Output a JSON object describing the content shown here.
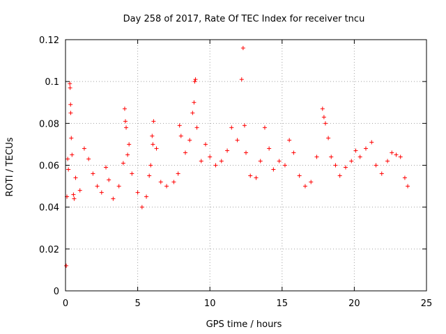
{
  "chart_data": {
    "type": "scatter",
    "title": "Day 258 of 2017, Rate Of TEC Index for receiver tncu",
    "xlabel": "GPS time / hours",
    "ylabel": "ROTI / TECUs",
    "xlim": [
      0,
      25
    ],
    "ylim": [
      0,
      0.12
    ],
    "x_ticks": [
      "0",
      "5",
      "10",
      "15",
      "20",
      "25"
    ],
    "y_ticks": [
      "0",
      "0.02",
      "0.04",
      "0.06",
      "0.08",
      "0.1",
      "0.12"
    ],
    "x_tick_values": [
      0,
      5,
      10,
      15,
      20,
      25
    ],
    "y_tick_values": [
      0,
      0.02,
      0.04,
      0.06,
      0.08,
      0.1,
      0.12
    ],
    "grid": true,
    "marker": "plus",
    "color": "#ff0000",
    "series": [
      {
        "points": [
          [
            0.05,
            0.012
          ],
          [
            0.1,
            0.045
          ],
          [
            0.15,
            0.063
          ],
          [
            0.2,
            0.058
          ],
          [
            0.3,
            0.099
          ],
          [
            0.32,
            0.097
          ],
          [
            0.35,
            0.089
          ],
          [
            0.36,
            0.085
          ],
          [
            0.4,
            0.073
          ],
          [
            0.45,
            0.065
          ],
          [
            0.55,
            0.046
          ],
          [
            0.6,
            0.044
          ],
          [
            0.7,
            0.054
          ],
          [
            1.0,
            0.048
          ],
          [
            1.3,
            0.068
          ],
          [
            1.6,
            0.063
          ],
          [
            1.9,
            0.056
          ],
          [
            2.2,
            0.05
          ],
          [
            2.5,
            0.047
          ],
          [
            2.8,
            0.059
          ],
          [
            3.0,
            0.053
          ],
          [
            3.3,
            0.044
          ],
          [
            3.7,
            0.05
          ],
          [
            4.0,
            0.061
          ],
          [
            4.1,
            0.087
          ],
          [
            4.15,
            0.081
          ],
          [
            4.2,
            0.078
          ],
          [
            4.3,
            0.065
          ],
          [
            4.4,
            0.07
          ],
          [
            4.6,
            0.056
          ],
          [
            5.0,
            0.047
          ],
          [
            5.3,
            0.04
          ],
          [
            5.6,
            0.045
          ],
          [
            5.8,
            0.055
          ],
          [
            5.9,
            0.06
          ],
          [
            6.0,
            0.074
          ],
          [
            6.05,
            0.07
          ],
          [
            6.1,
            0.081
          ],
          [
            6.3,
            0.068
          ],
          [
            6.6,
            0.052
          ],
          [
            7.0,
            0.05
          ],
          [
            7.5,
            0.052
          ],
          [
            7.8,
            0.056
          ],
          [
            7.9,
            0.079
          ],
          [
            8.0,
            0.074
          ],
          [
            8.3,
            0.066
          ],
          [
            8.6,
            0.072
          ],
          [
            8.8,
            0.085
          ],
          [
            8.9,
            0.09
          ],
          [
            8.95,
            0.1
          ],
          [
            9.0,
            0.101
          ],
          [
            9.1,
            0.078
          ],
          [
            9.4,
            0.062
          ],
          [
            9.7,
            0.07
          ],
          [
            10.0,
            0.064
          ],
          [
            10.4,
            0.06
          ],
          [
            10.8,
            0.062
          ],
          [
            11.2,
            0.067
          ],
          [
            11.5,
            0.078
          ],
          [
            11.9,
            0.072
          ],
          [
            12.2,
            0.101
          ],
          [
            12.3,
            0.116
          ],
          [
            12.4,
            0.079
          ],
          [
            12.5,
            0.066
          ],
          [
            12.8,
            0.055
          ],
          [
            13.2,
            0.054
          ],
          [
            13.5,
            0.062
          ],
          [
            13.8,
            0.078
          ],
          [
            14.1,
            0.068
          ],
          [
            14.4,
            0.058
          ],
          [
            14.8,
            0.062
          ],
          [
            15.2,
            0.06
          ],
          [
            15.5,
            0.072
          ],
          [
            15.8,
            0.066
          ],
          [
            16.2,
            0.055
          ],
          [
            16.6,
            0.05
          ],
          [
            17.0,
            0.052
          ],
          [
            17.4,
            0.064
          ],
          [
            17.8,
            0.087
          ],
          [
            17.9,
            0.083
          ],
          [
            18.0,
            0.08
          ],
          [
            18.2,
            0.073
          ],
          [
            18.4,
            0.064
          ],
          [
            18.7,
            0.06
          ],
          [
            19.0,
            0.055
          ],
          [
            19.4,
            0.059
          ],
          [
            19.8,
            0.062
          ],
          [
            20.1,
            0.067
          ],
          [
            20.4,
            0.064
          ],
          [
            20.8,
            0.068
          ],
          [
            21.2,
            0.071
          ],
          [
            21.5,
            0.06
          ],
          [
            21.9,
            0.056
          ],
          [
            22.3,
            0.062
          ],
          [
            22.6,
            0.066
          ],
          [
            22.9,
            0.065
          ],
          [
            23.2,
            0.064
          ],
          [
            23.5,
            0.054
          ],
          [
            23.7,
            0.05
          ]
        ]
      }
    ]
  }
}
